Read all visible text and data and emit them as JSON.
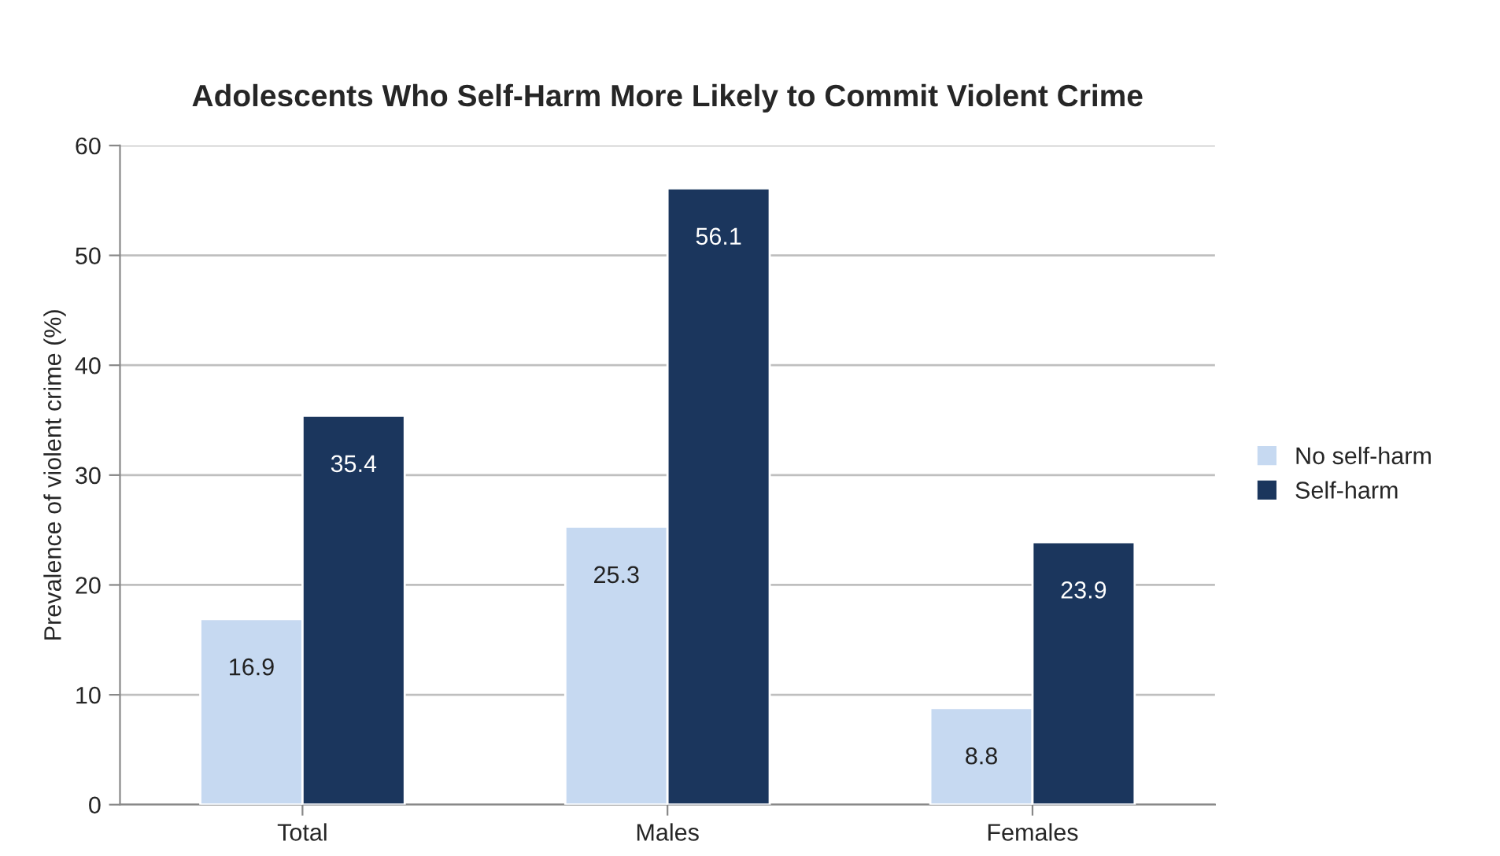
{
  "chart_data": {
    "type": "bar",
    "title": "Adolescents Who Self-Harm More Likely to Commit Violent Crime",
    "ylabel": "Prevalence of violent crime (%)",
    "categories": [
      "Total",
      "Males",
      "Females"
    ],
    "series": [
      {
        "name": "No self-harm",
        "color": "#c6d9f1",
        "values": [
          16.9,
          25.3,
          8.8
        ]
      },
      {
        "name": "Self-harm",
        "color": "#1b365d",
        "values": [
          35.4,
          56.1,
          23.9
        ]
      }
    ],
    "ylim": [
      0,
      60
    ],
    "yticks": [
      0,
      10,
      20,
      30,
      40,
      50,
      60
    ],
    "grid": "y",
    "legend": "right",
    "data_labels": true
  }
}
